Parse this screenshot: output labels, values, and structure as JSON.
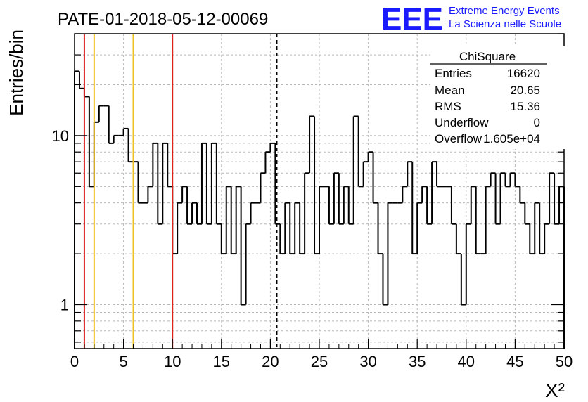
{
  "header": {
    "title": "PATE-01-2018-05-12-00069",
    "logo_text": "EEE",
    "logo_line1": "Extreme Energy Events",
    "logo_line2": "La Scienza nelle Scuole"
  },
  "stats": {
    "title": "ChiSquare",
    "rows": [
      {
        "label": "Entries",
        "value": "16620"
      },
      {
        "label": "Mean",
        "value": "20.65"
      },
      {
        "label": "RMS",
        "value": "15.36"
      },
      {
        "label": "Underflow",
        "value": "0"
      },
      {
        "label": "Overflow",
        "value": "1.605e+04"
      }
    ]
  },
  "chart_data": {
    "type": "histogram",
    "xlabel": "X²",
    "ylabel": "Entries/bin",
    "xlim": [
      0,
      50
    ],
    "ylim": [
      0.55,
      40
    ],
    "y_scale": "log",
    "bin_width": 0.5,
    "x_ticks": [
      0,
      5,
      10,
      15,
      20,
      25,
      30,
      35,
      40,
      45,
      50
    ],
    "x_tick_labels": [
      "0",
      "5",
      "10",
      "15",
      "20",
      "25",
      "30",
      "35",
      "40",
      "45",
      "50"
    ],
    "y_ticks": [
      1,
      10
    ],
    "y_tick_labels": [
      "1",
      "10"
    ],
    "grid": true,
    "values": [
      24,
      19,
      17,
      5,
      12,
      15,
      15,
      9,
      10,
      10,
      11,
      7,
      7,
      4,
      4,
      5,
      9,
      3,
      9,
      5,
      2,
      4,
      5,
      3,
      4,
      3,
      9,
      3,
      9,
      3,
      2,
      5,
      2,
      5,
      1,
      3,
      4,
      4,
      6,
      8,
      9,
      3,
      2,
      4,
      2,
      4,
      2,
      6,
      13,
      2,
      5,
      5,
      3,
      6,
      3,
      5,
      3,
      13,
      5,
      7,
      8,
      4,
      2,
      1,
      4,
      4,
      4,
      5,
      7,
      2,
      4,
      5,
      3,
      7,
      5,
      5,
      5,
      3,
      2,
      1,
      3,
      5,
      2,
      2,
      5,
      6,
      3,
      6,
      5,
      6,
      5,
      4,
      3,
      2,
      4,
      2,
      3,
      6,
      3,
      5
    ],
    "vertical_lines": [
      {
        "x": 1,
        "color": "#e01f1f",
        "style": "solid"
      },
      {
        "x": 2,
        "color": "#f0c020",
        "style": "solid"
      },
      {
        "x": 6,
        "color": "#f0c020",
        "style": "solid"
      },
      {
        "x": 10,
        "color": "#e01f1f",
        "style": "solid"
      },
      {
        "x": 20.65,
        "color": "#000000",
        "style": "dashed"
      }
    ]
  }
}
